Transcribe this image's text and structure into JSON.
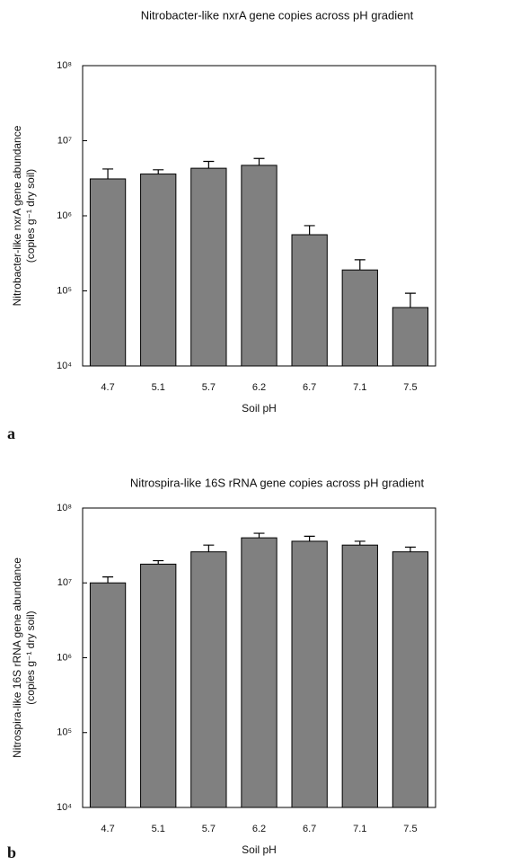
{
  "chart_data": [
    {
      "type": "bar",
      "panel_label": "a",
      "title": "Nitrobacter-like nxrA gene copies across pH gradient",
      "ylabel": [
        "Nitrobacter-like nxrA gene abundance",
        "(copies g⁻¹ dry soil)"
      ],
      "xlabel": "Soil pH",
      "categories": [
        "4.7",
        "5.1",
        "5.7",
        "6.2",
        "6.7",
        "7.1",
        "7.5"
      ],
      "values": [
        3100000,
        3600000,
        4300000,
        4700000,
        560000,
        190000,
        60000
      ],
      "errors": [
        1100000,
        500000,
        1000000,
        1100000,
        180000,
        70000,
        33000
      ],
      "color": "#808080",
      "log_scale": true,
      "ylim": [
        10000,
        100000000
      ],
      "yticks": [
        {
          "value": 10000,
          "label": "10⁴"
        },
        {
          "value": 100000,
          "label": "10⁵"
        },
        {
          "value": 1000000,
          "label": "10⁶"
        },
        {
          "value": 10000000,
          "label": "10⁷"
        },
        {
          "value": 100000000,
          "label": "10⁸"
        }
      ]
    },
    {
      "type": "bar",
      "panel_label": "b",
      "title": "Nitrospira-like 16S rRNA gene copies across pH gradient",
      "ylabel": [
        "Nitrospira-like 16S rRNA gene abundance",
        "(copies g⁻¹ dry soil)"
      ],
      "xlabel": "Soil pH",
      "categories": [
        "4.7",
        "5.1",
        "5.7",
        "6.2",
        "6.7",
        "7.1",
        "7.5"
      ],
      "values": [
        10000000,
        17800000,
        26000000,
        40000000,
        36000000,
        32000000,
        26000000
      ],
      "errors": [
        2000000,
        2000000,
        6000000,
        6000000,
        6000000,
        4000000,
        4000000
      ],
      "color": "#808080",
      "log_scale": true,
      "ylim": [
        10000,
        100000000
      ],
      "yticks": [
        {
          "value": 10000,
          "label": "10⁴"
        },
        {
          "value": 100000,
          "label": "10⁵"
        },
        {
          "value": 1000000,
          "label": "10⁶"
        },
        {
          "value": 10000000,
          "label": "10⁷"
        },
        {
          "value": 100000000,
          "label": "10⁸"
        }
      ]
    }
  ]
}
